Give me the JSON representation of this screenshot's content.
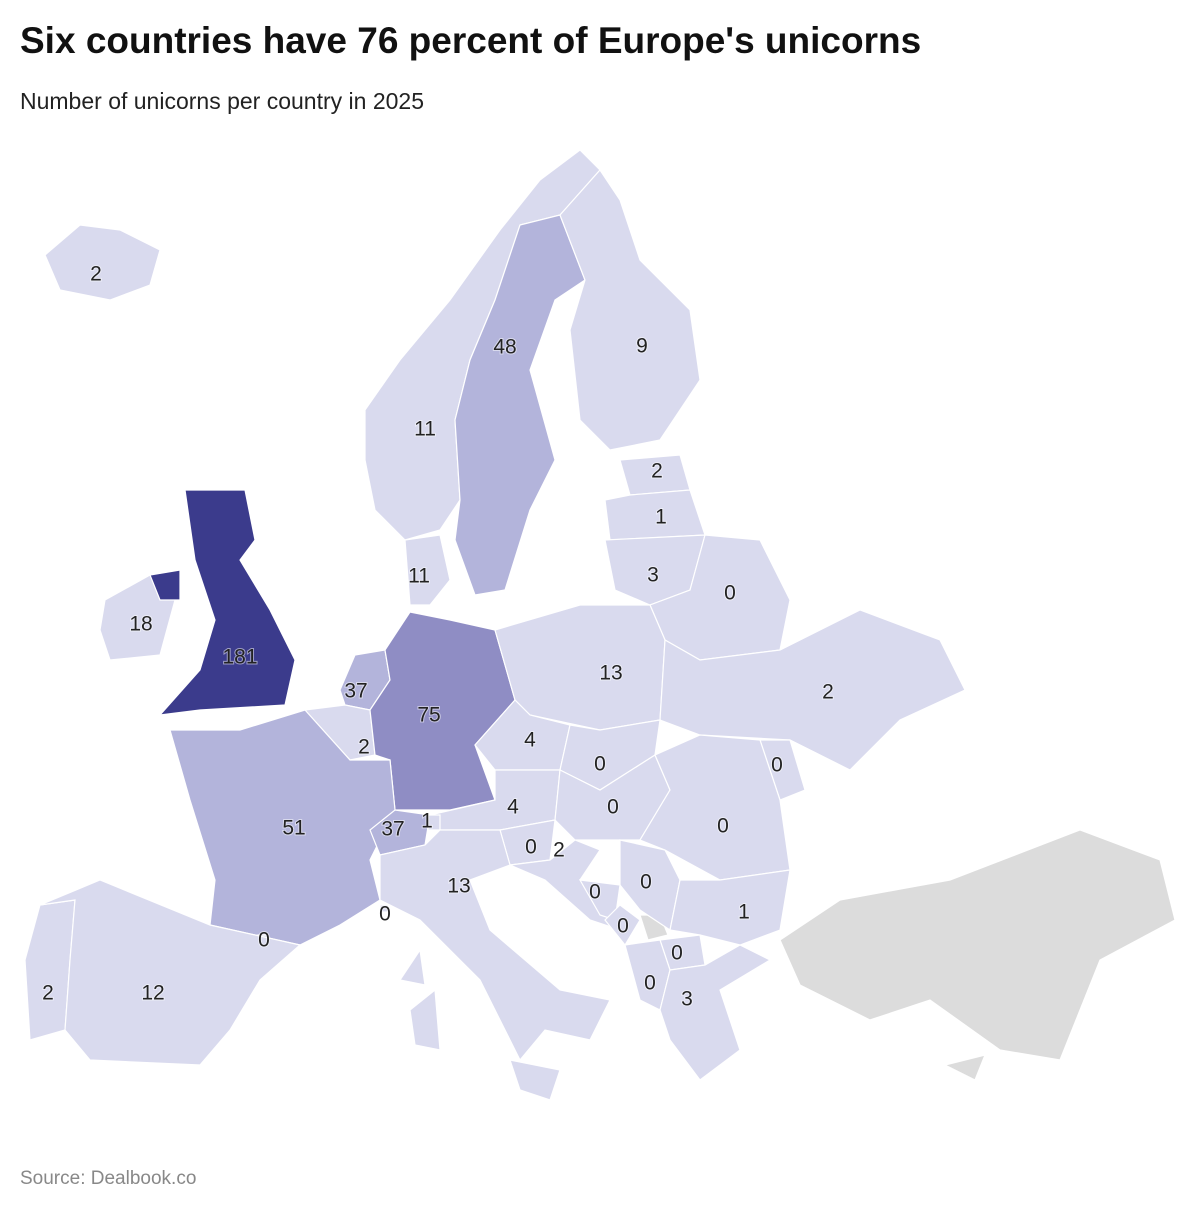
{
  "title": "Six countries have 76 percent of Europe's unicorns",
  "subtitle": "Number of unicorns per country in 2025",
  "source": "Source: Dealbook.co",
  "colors": {
    "scale_0": "#d9daee",
    "scale_1": "#b3b4db",
    "scale_2": "#8f8dc4",
    "scale_3": "#3b3b8c",
    "no_data": "#dcdcdc"
  },
  "chart_data": {
    "type": "choropleth",
    "title": "Six countries have 76 percent of Europe's unicorns",
    "subtitle": "Number of unicorns per country in 2025",
    "countries": [
      {
        "name": "Iceland",
        "value": 2
      },
      {
        "name": "Norway",
        "value": 11
      },
      {
        "name": "Sweden",
        "value": 48
      },
      {
        "name": "Finland",
        "value": 9
      },
      {
        "name": "Estonia",
        "value": 2
      },
      {
        "name": "Latvia",
        "value": 1
      },
      {
        "name": "Lithuania",
        "value": 3
      },
      {
        "name": "Belarus",
        "value": 0
      },
      {
        "name": "Denmark",
        "value": 11
      },
      {
        "name": "Ireland",
        "value": 18
      },
      {
        "name": "United Kingdom",
        "value": 181
      },
      {
        "name": "Netherlands",
        "value": 37
      },
      {
        "name": "Belgium",
        "value": 2
      },
      {
        "name": "Germany",
        "value": 75
      },
      {
        "name": "Poland",
        "value": 13
      },
      {
        "name": "Ukraine",
        "value": 2
      },
      {
        "name": "Czechia",
        "value": 4
      },
      {
        "name": "Slovakia",
        "value": 0
      },
      {
        "name": "Moldova",
        "value": 0
      },
      {
        "name": "Austria",
        "value": 4
      },
      {
        "name": "Hungary",
        "value": 0
      },
      {
        "name": "Romania",
        "value": 0
      },
      {
        "name": "France",
        "value": 51
      },
      {
        "name": "Switzerland",
        "value": 37
      },
      {
        "name": "Liechtenstein",
        "value": 1
      },
      {
        "name": "Slovenia",
        "value": 0
      },
      {
        "name": "Croatia",
        "value": 2
      },
      {
        "name": "Italy",
        "value": 13
      },
      {
        "name": "Monaco",
        "value": 0
      },
      {
        "name": "Serbia",
        "value": 0
      },
      {
        "name": "Bosnia and Herzegovina",
        "value": 0
      },
      {
        "name": "Montenegro",
        "value": 0
      },
      {
        "name": "Bulgaria",
        "value": 1
      },
      {
        "name": "North Macedonia",
        "value": 0
      },
      {
        "name": "Albania",
        "value": 0
      },
      {
        "name": "Greece",
        "value": 3
      },
      {
        "name": "Andorra",
        "value": 0
      },
      {
        "name": "Portugal",
        "value": 2
      },
      {
        "name": "Spain",
        "value": 12
      }
    ]
  }
}
